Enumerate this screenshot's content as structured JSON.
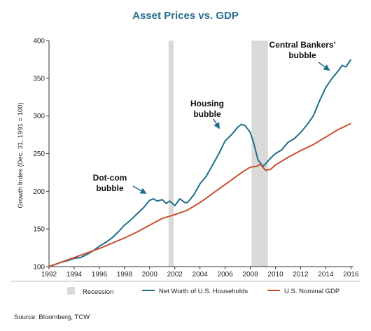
{
  "chart_data": {
    "type": "line",
    "title": "Asset Prices vs. GDP",
    "ylabel": "Growth Index (Dec. 31, 1991 = 100)",
    "xlim": [
      1992,
      2016.2
    ],
    "ylim": [
      100,
      400
    ],
    "x_ticks": [
      "1992",
      "1994",
      "1996",
      "1998",
      "2000",
      "2002",
      "2004",
      "2006",
      "2008",
      "2010",
      "2012",
      "2014",
      "2016"
    ],
    "y_ticks": [
      "100",
      "150",
      "200",
      "250",
      "300",
      "350",
      "400"
    ],
    "recessions": [
      [
        2001.5,
        2001.9
      ],
      [
        2008.1,
        2009.4
      ]
    ],
    "series": [
      {
        "name": "Net Worth of U.S. Households",
        "color": "#1f6e8c",
        "x": [
          1992,
          1992.5,
          1993,
          1993.5,
          1994,
          1994.5,
          1995,
          1995.5,
          1996,
          1996.5,
          1997,
          1997.5,
          1998,
          1998.5,
          1999,
          1999.5,
          2000,
          2000.3,
          2000.6,
          2001,
          2001.3,
          2001.6,
          2002,
          2002.4,
          2002.8,
          2003,
          2003.5,
          2004,
          2004.5,
          2005,
          2005.5,
          2006,
          2006.5,
          2007,
          2007.3,
          2007.6,
          2008,
          2008.3,
          2008.6,
          2009,
          2009.3,
          2009.6,
          2010,
          2010.5,
          2011,
          2011.5,
          2012,
          2012.5,
          2013,
          2013.5,
          2014,
          2014.5,
          2015,
          2015.3,
          2015.6,
          2016
        ],
        "values": [
          100,
          103,
          106,
          108,
          111,
          112,
          116,
          121,
          127,
          132,
          138,
          146,
          155,
          162,
          170,
          178,
          188,
          190,
          187,
          189,
          184,
          187,
          181,
          190,
          185,
          185,
          195,
          210,
          220,
          235,
          250,
          267,
          275,
          285,
          289,
          287,
          278,
          262,
          242,
          233,
          238,
          244,
          250,
          255,
          265,
          270,
          278,
          288,
          300,
          320,
          338,
          350,
          360,
          367,
          365,
          375
        ]
      },
      {
        "name": "U.S. Nominal GDP",
        "color": "#c9502a",
        "x": [
          1992,
          1993,
          1994,
          1995,
          1996,
          1997,
          1998,
          1999,
          2000,
          2001,
          2002,
          2003,
          2004,
          2005,
          2006,
          2007,
          2007.5,
          2008,
          2008.5,
          2008.8,
          2009.2,
          2009.6,
          2010,
          2011,
          2012,
          2013,
          2014,
          2015,
          2016
        ],
        "values": [
          100,
          106,
          112,
          118,
          124,
          131,
          138,
          146,
          155,
          164,
          169,
          175,
          185,
          197,
          209,
          221,
          227,
          232,
          233,
          236,
          228,
          229,
          235,
          245,
          254,
          262,
          272,
          282,
          290
        ]
      }
    ],
    "legend": [
      {
        "label": "Recession",
        "kind": "box",
        "color": "#d9d9d9"
      },
      {
        "label": "Net Worth of U.S. Households",
        "kind": "line",
        "color": "#1f6e8c"
      },
      {
        "label": "U.S. Nominal GDP",
        "kind": "line",
        "color": "#c9502a"
      }
    ],
    "annotations": [
      {
        "lines": [
          "Dot-com",
          "bubble"
        ],
        "target_x": 2000,
        "target_y": 188
      },
      {
        "lines": [
          "Housing",
          "bubble"
        ],
        "target_x": 2007.3,
        "target_y": 289
      },
      {
        "lines": [
          "Central Bankers'",
          "bubble"
        ],
        "target_x": 2015.5,
        "target_y": 370
      }
    ],
    "source": "Source: Bloomberg, TCW"
  }
}
